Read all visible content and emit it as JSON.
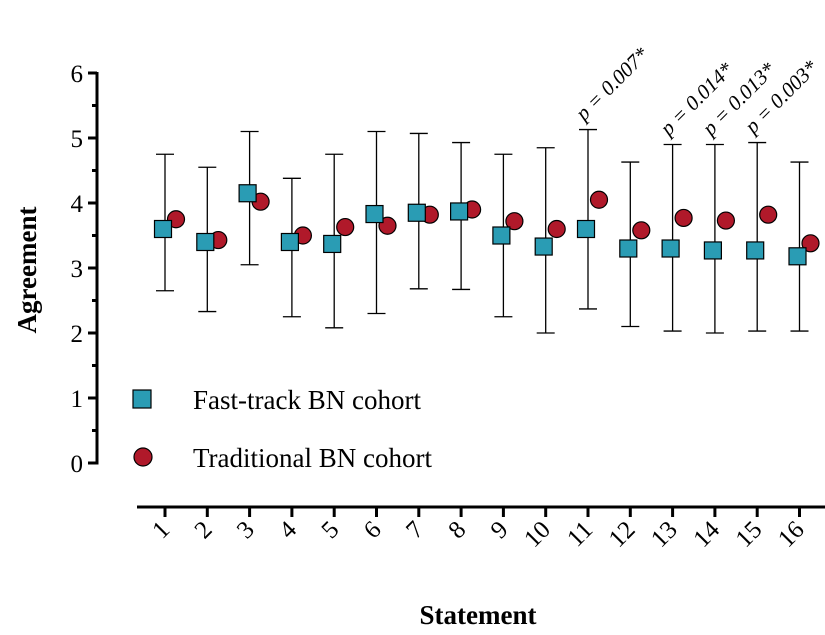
{
  "chart_data": {
    "type": "scatter",
    "xlabel": "Statement",
    "ylabel": "Agreement",
    "categories": [
      "1",
      "2",
      "3",
      "4",
      "5",
      "6",
      "7",
      "8",
      "9",
      "10",
      "11",
      "12",
      "13",
      "14",
      "15",
      "16"
    ],
    "ylim": [
      0,
      6
    ],
    "yticks": [
      "0",
      "1",
      "2",
      "3",
      "4",
      "5",
      "6"
    ],
    "grid": false,
    "legend_position": "bottom-left",
    "series": [
      {
        "name": "Fast-track BN cohort",
        "marker": "square",
        "color": "#2a9cb4",
        "values": [
          3.6,
          3.4,
          4.15,
          3.4,
          3.37,
          3.83,
          3.85,
          3.87,
          3.5,
          3.33,
          3.6,
          3.3,
          3.3,
          3.27,
          3.27,
          3.18
        ],
        "err_low": [
          2.65,
          2.33,
          3.05,
          2.25,
          2.08,
          2.3,
          2.68,
          2.67,
          2.25,
          2.0,
          2.37,
          2.1,
          2.03,
          2.0,
          2.03,
          2.03
        ],
        "err_high": [
          4.75,
          4.55,
          5.1,
          4.38,
          4.75,
          5.1,
          5.07,
          4.93,
          4.75,
          4.85,
          5.13,
          4.63,
          4.9,
          4.9,
          4.93,
          4.63
        ]
      },
      {
        "name": "Traditional BN cohort",
        "marker": "circle",
        "color": "#b0192a",
        "values": [
          3.75,
          3.43,
          4.02,
          3.5,
          3.63,
          3.65,
          3.82,
          3.9,
          3.72,
          3.6,
          4.05,
          3.58,
          3.77,
          3.73,
          3.82,
          3.38
        ]
      }
    ],
    "annotations": [
      {
        "category": "11",
        "text": "p = 0.007*"
      },
      {
        "category": "13",
        "text": "p = 0.014*"
      },
      {
        "category": "14",
        "text": "p = 0.013*"
      },
      {
        "category": "15",
        "text": "p = 0.003*"
      }
    ]
  }
}
